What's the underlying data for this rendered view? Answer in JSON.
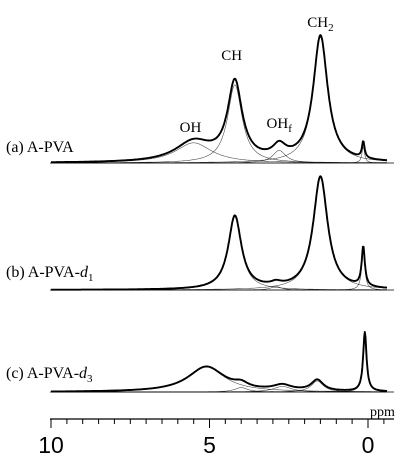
{
  "chart_data": {
    "type": "line",
    "xlabel": "ppm",
    "x_ticks": [
      10,
      5,
      0
    ],
    "xlim": [
      10,
      -0.6
    ],
    "x_reversed": true,
    "panels": [
      {
        "label_prefix": "(a) A-PVA",
        "label_suffix": "",
        "label_sub": "",
        "peak_labels": [
          {
            "text": "OH",
            "sub": "",
            "ppm": 5.6
          },
          {
            "text": "CH",
            "sub": "",
            "ppm": 4.3
          },
          {
            "text": "OH",
            "sub": "f",
            "ppm": 2.8
          },
          {
            "text": "CH",
            "sub": "2",
            "ppm": 1.5
          }
        ],
        "components": [
          {
            "center": 5.5,
            "height": 0.16,
            "width": 1.4
          },
          {
            "center": 4.2,
            "height": 0.62,
            "width": 0.55
          },
          {
            "center": 2.8,
            "height": 0.1,
            "width": 0.5
          },
          {
            "center": 1.5,
            "height": 1.0,
            "width": 0.55
          },
          {
            "center": 0.15,
            "height": 0.13,
            "width": 0.1
          }
        ]
      },
      {
        "label_prefix": "(b) A-PVA-",
        "label_suffix": "d",
        "label_sub": "1",
        "peak_labels": [],
        "components": [
          {
            "center": 4.2,
            "height": 0.65,
            "width": 0.5
          },
          {
            "center": 2.9,
            "height": 0.03,
            "width": 0.4
          },
          {
            "center": 1.5,
            "height": 1.0,
            "width": 0.55
          },
          {
            "center": 0.15,
            "height": 0.35,
            "width": 0.12
          }
        ]
      },
      {
        "label_prefix": "(c) A-PVA-",
        "label_suffix": "d",
        "label_sub": "3",
        "peak_labels": [],
        "components": [
          {
            "center": 5.1,
            "height": 0.68,
            "width": 1.4
          },
          {
            "center": 4.0,
            "height": 0.12,
            "width": 0.5
          },
          {
            "center": 2.7,
            "height": 0.15,
            "width": 0.7
          },
          {
            "center": 1.6,
            "height": 0.3,
            "width": 0.45
          },
          {
            "center": 0.1,
            "height": 1.6,
            "width": 0.13
          }
        ]
      }
    ]
  }
}
